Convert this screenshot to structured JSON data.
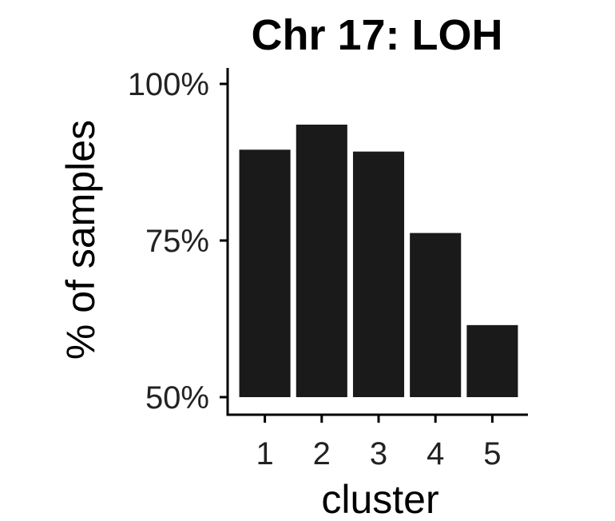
{
  "chart_data": {
    "type": "bar",
    "title": "Chr 17: LOH",
    "xlabel": "cluster",
    "ylabel": "% of samples",
    "categories": [
      "1",
      "2",
      "3",
      "4",
      "5"
    ],
    "values": [
      89.5,
      93.5,
      89.2,
      76.2,
      61.5
    ],
    "ylim": [
      50,
      100
    ],
    "y_ticks": [
      50,
      75,
      100
    ],
    "y_tick_labels": [
      "50%",
      "75%",
      "100%"
    ],
    "grid": false,
    "legend": "none",
    "bar_color": "#1a1a1a"
  }
}
